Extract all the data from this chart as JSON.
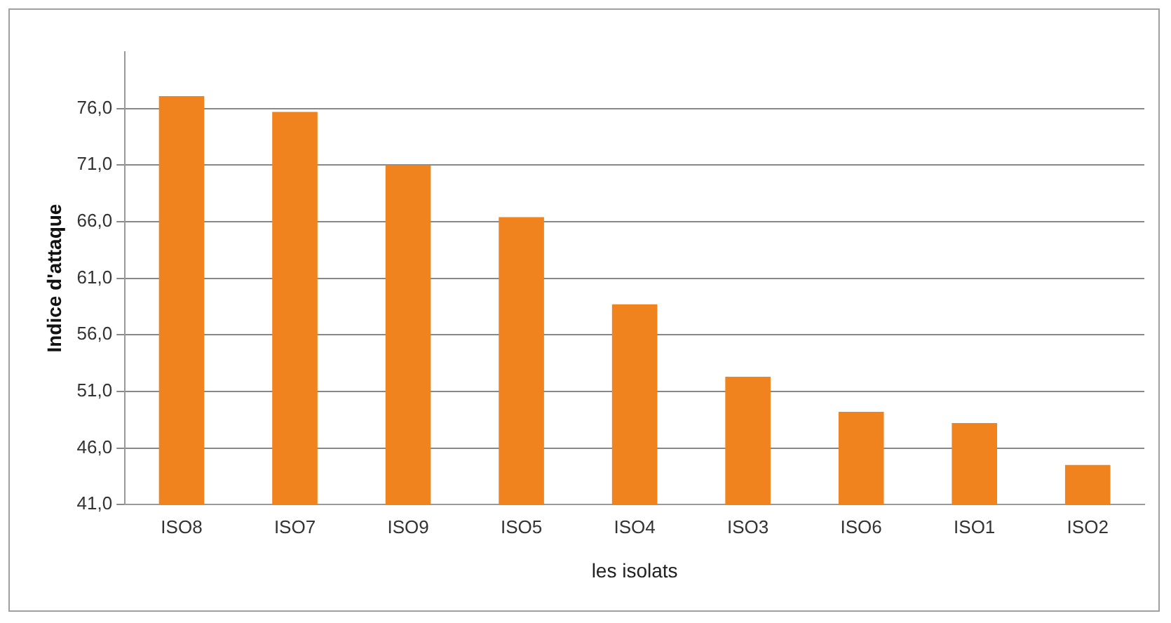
{
  "chart_data": {
    "type": "bar",
    "xlabel": "les isolats",
    "ylabel": "Indice d'attaque",
    "categories": [
      "ISO8",
      "ISO7",
      "ISO9",
      "ISO5",
      "ISO4",
      "ISO3",
      "ISO6",
      "ISO1",
      "ISO2"
    ],
    "values": [
      77.1,
      75.7,
      71.0,
      66.4,
      58.7,
      52.3,
      49.2,
      48.2,
      44.5
    ],
    "color": "#f0831e",
    "ylim": [
      41,
      81
    ],
    "yticks": [
      {
        "value": 41,
        "label": "41,0"
      },
      {
        "value": 46,
        "label": "46,0"
      },
      {
        "value": 51,
        "label": "51,0"
      },
      {
        "value": 56,
        "label": "56,0"
      },
      {
        "value": 61,
        "label": "61,0"
      },
      {
        "value": 66,
        "label": "66,0"
      },
      {
        "value": 71,
        "label": "71,0"
      },
      {
        "value": 76,
        "label": "76,0"
      }
    ],
    "grid": "y",
    "legend": false
  }
}
